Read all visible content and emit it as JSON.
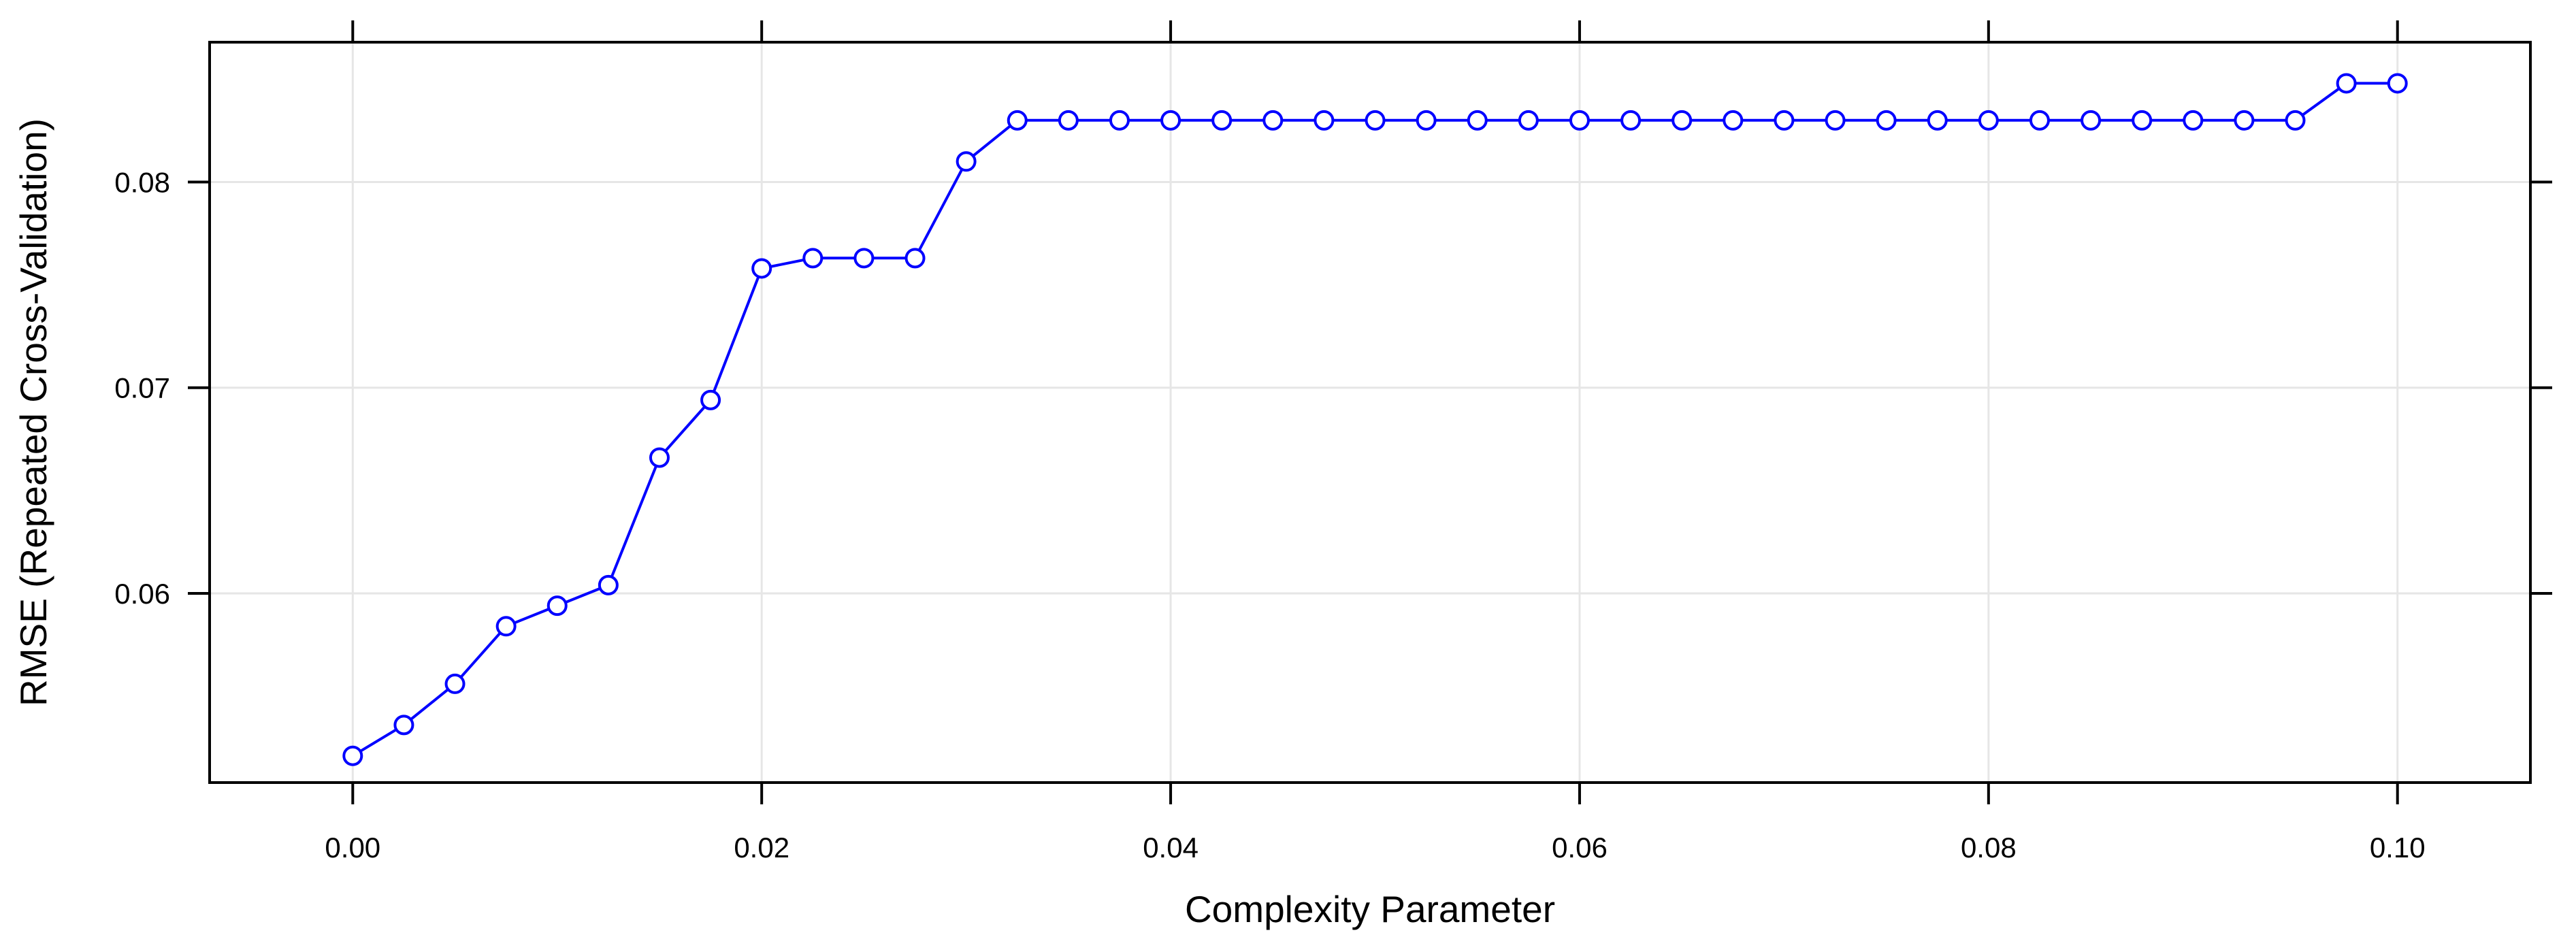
{
  "chart_data": {
    "type": "line",
    "title": "",
    "xlabel": "Complexity Parameter",
    "ylabel": "RMSE (Repeated Cross-Validation)",
    "xlim": [
      -0.007,
      0.1065
    ],
    "ylim": [
      0.0508,
      0.0868
    ],
    "x_ticks": [
      0.0,
      0.02,
      0.04,
      0.06,
      0.08,
      0.1
    ],
    "x_tick_labels": [
      "0.00",
      "0.02",
      "0.04",
      "0.06",
      "0.08",
      "0.10"
    ],
    "y_ticks": [
      0.06,
      0.07,
      0.08
    ],
    "y_tick_labels": [
      "0.06",
      "0.07",
      "0.08"
    ],
    "grid": true,
    "series": [
      {
        "color": "#0000ff",
        "marker": "open-circle",
        "x": [
          0.0,
          0.0025,
          0.005,
          0.0075,
          0.01,
          0.0125,
          0.015,
          0.0175,
          0.02,
          0.0225,
          0.025,
          0.0275,
          0.03,
          0.0325,
          0.035,
          0.0375,
          0.04,
          0.0425,
          0.045,
          0.0475,
          0.05,
          0.0525,
          0.055,
          0.0575,
          0.06,
          0.0625,
          0.065,
          0.0675,
          0.07,
          0.0725,
          0.075,
          0.0775,
          0.08,
          0.0825,
          0.085,
          0.0875,
          0.09,
          0.0925,
          0.095,
          0.0975,
          0.1
        ],
        "y": [
          0.0521,
          0.0536,
          0.0556,
          0.0584,
          0.0594,
          0.0604,
          0.0666,
          0.0694,
          0.0758,
          0.0763,
          0.0763,
          0.0763,
          0.081,
          0.083,
          0.083,
          0.083,
          0.083,
          0.083,
          0.083,
          0.083,
          0.083,
          0.083,
          0.083,
          0.083,
          0.083,
          0.083,
          0.083,
          0.083,
          0.083,
          0.083,
          0.083,
          0.083,
          0.083,
          0.083,
          0.083,
          0.083,
          0.083,
          0.083,
          0.083,
          0.0848,
          0.0848
        ]
      }
    ]
  }
}
